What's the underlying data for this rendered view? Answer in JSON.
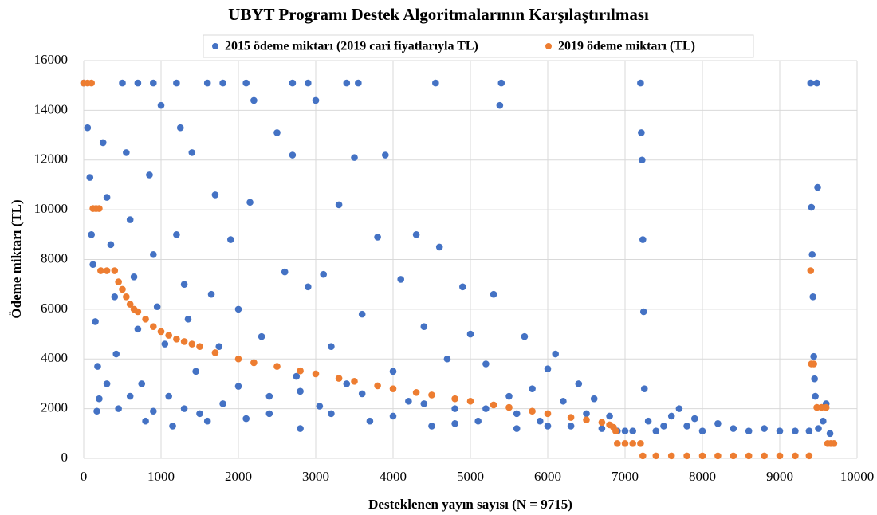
{
  "chart_data": {
    "type": "scatter",
    "title": "UBYT Programı Destek Algoritmalarının Karşılaştırılması",
    "x_label": "Desteklenen yayın sayısı (N = 9715)",
    "y_label": "Ödeme miktarı (TL)",
    "xlim": [
      0,
      10000
    ],
    "xticks": [
      0,
      1000,
      2000,
      3000,
      4000,
      5000,
      6000,
      7000,
      8000,
      9000,
      10000
    ],
    "ylim": [
      0,
      16000
    ],
    "yticks": [
      0,
      2000,
      4000,
      6000,
      8000,
      10000,
      12000,
      14000,
      16000
    ],
    "grid": true,
    "legend": "top",
    "series": [
      {
        "name": "2015 ödeme miktarı (2019 cari fiyatlarıyla TL)",
        "color": "#4472c4",
        "x": [
          0,
          50,
          80,
          100,
          120,
          150,
          180,
          200,
          170,
          250,
          300,
          350,
          400,
          420,
          450,
          500,
          550,
          600,
          650,
          700,
          750,
          800,
          850,
          900,
          950,
          1000,
          1050,
          1100,
          1150,
          1200,
          1250,
          1300,
          1350,
          1400,
          1450,
          1500,
          1600,
          1650,
          1700,
          1750,
          1800,
          1900,
          2000,
          2100,
          2150,
          2200,
          2300,
          2400,
          2500,
          2600,
          2700,
          2750,
          2800,
          2900,
          3000,
          3050,
          3100,
          3200,
          3300,
          3400,
          3500,
          3600,
          3700,
          3800,
          3900,
          4000,
          4100,
          4200,
          4300,
          4400,
          4500,
          4550,
          4600,
          4700,
          4800,
          4900,
          5000,
          5100,
          5200,
          5300,
          5380,
          5400,
          5500,
          5600,
          5700,
          5800,
          5900,
          6000,
          6100,
          6200,
          6300,
          6400,
          6500,
          6600,
          6700,
          6800,
          6900,
          7000,
          7100,
          7200,
          7210,
          7220,
          7230,
          7240,
          7250,
          7300,
          7400,
          7500,
          7600,
          7700,
          7800,
          7900,
          8000,
          8200,
          8400,
          8600,
          8800,
          9000,
          9200,
          9380,
          9400,
          9410,
          9420,
          9430,
          9440,
          9450,
          9460,
          9480,
          9490,
          9500,
          9560,
          9600,
          9650,
          300,
          600,
          900,
          1300,
          1600,
          2000,
          2400,
          2800,
          3200,
          3600,
          4000,
          4400,
          4800,
          5200,
          5600,
          6000,
          700,
          900,
          1200,
          1800,
          2100,
          2700,
          2900,
          3400,
          3550
        ],
        "values": [
          15100,
          13300,
          11300,
          9000,
          7800,
          5500,
          3700,
          2400,
          1900,
          12700,
          10500,
          8600,
          6500,
          4200,
          2000,
          15100,
          12300,
          9600,
          7300,
          5200,
          3000,
          1500,
          11400,
          8200,
          6100,
          14200,
          4600,
          2500,
          1300,
          9000,
          13300,
          7000,
          5600,
          12300,
          3500,
          1800,
          15100,
          6600,
          10600,
          4500,
          2200,
          8800,
          6000,
          1600,
          10300,
          14400,
          4900,
          2500,
          13100,
          7500,
          12200,
          3300,
          1200,
          6900,
          14400,
          2100,
          7400,
          4500,
          10200,
          3000,
          12100,
          5800,
          1500,
          8900,
          12200,
          3500,
          7200,
          2300,
          9000,
          5300,
          1300,
          15100,
          8500,
          4000,
          2000,
          6900,
          5000,
          1500,
          3800,
          6600,
          14200,
          15100,
          2500,
          1200,
          4900,
          2800,
          1500,
          3600,
          4200,
          2300,
          1300,
          3000,
          1800,
          2400,
          1200,
          1700,
          1100,
          1100,
          1100,
          15100,
          13100,
          12000,
          8800,
          5900,
          2800,
          1500,
          1100,
          1300,
          1700,
          2000,
          1300,
          1600,
          1100,
          1400,
          1200,
          1100,
          1200,
          1100,
          1100,
          1100,
          15100,
          10100,
          8200,
          6500,
          4100,
          3200,
          2500,
          15100,
          10900,
          1200,
          1500,
          2200,
          1000,
          3000,
          2500,
          1900,
          2000,
          1500,
          2900,
          1800,
          2700,
          1800,
          2600,
          1700,
          2200,
          1400,
          2000,
          1800,
          1300,
          15100,
          15100,
          15100,
          15100,
          15100,
          15100,
          15100,
          15100,
          15100
        ]
      },
      {
        "name": "2019 ödeme miktarı (TL)",
        "color": "#ed7d31",
        "x": [
          0,
          50,
          100,
          120,
          160,
          200,
          220,
          300,
          400,
          450,
          500,
          550,
          600,
          650,
          700,
          800,
          900,
          1000,
          1100,
          1200,
          1300,
          1400,
          1500,
          1700,
          2000,
          2200,
          2500,
          2800,
          3000,
          3300,
          3500,
          3800,
          4000,
          4300,
          4500,
          4800,
          5000,
          5300,
          5500,
          5800,
          6000,
          6300,
          6500,
          6700,
          6800,
          6850,
          6880,
          6900,
          7000,
          7100,
          7200,
          7230,
          7400,
          7600,
          7800,
          8000,
          8200,
          8400,
          8600,
          8800,
          9000,
          9200,
          9380,
          9400,
          9410,
          9440,
          9480,
          9540,
          9600,
          9620,
          9660,
          9700
        ],
        "values": [
          15100,
          15100,
          15100,
          10050,
          10050,
          10050,
          7550,
          7550,
          7550,
          7100,
          6800,
          6500,
          6200,
          6000,
          5900,
          5600,
          5300,
          5100,
          4950,
          4800,
          4700,
          4600,
          4500,
          4250,
          4000,
          3850,
          3700,
          3520,
          3400,
          3220,
          3100,
          2920,
          2800,
          2650,
          2550,
          2400,
          2300,
          2150,
          2050,
          1900,
          1800,
          1650,
          1550,
          1450,
          1350,
          1250,
          1100,
          600,
          600,
          600,
          600,
          100,
          100,
          100,
          100,
          100,
          100,
          100,
          100,
          100,
          100,
          100,
          100,
          7550,
          3800,
          3800,
          2050,
          2050,
          2050,
          600,
          600,
          600
        ]
      }
    ]
  }
}
